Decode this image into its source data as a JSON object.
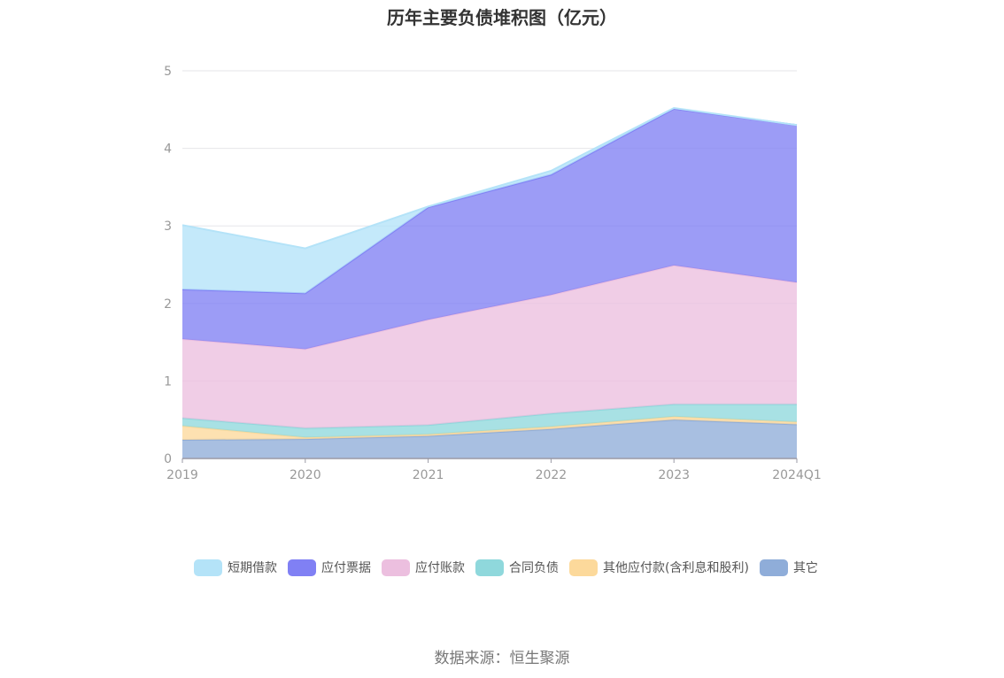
{
  "chart_data": {
    "type": "area",
    "stacked": true,
    "title": "历年主要负债堆积图（亿元）",
    "x": [
      "2019",
      "2020",
      "2021",
      "2022",
      "2023",
      "2024Q1"
    ],
    "ylim": [
      0,
      5
    ],
    "yticks": [
      "0",
      "1",
      "2",
      "3",
      "4",
      "5"
    ],
    "grid": true,
    "legend_position": "bottom",
    "series": [
      {
        "name": "其它",
        "color": "#8fadd9",
        "values": [
          0.24,
          0.25,
          0.29,
          0.38,
          0.5,
          0.44
        ]
      },
      {
        "name": "其他应付款(含利息和股利)",
        "color": "#fcd99b",
        "values": [
          0.18,
          0.02,
          0.02,
          0.03,
          0.04,
          0.03
        ]
      },
      {
        "name": "合同负债",
        "color": "#8fd8dc",
        "values": [
          0.1,
          0.12,
          0.12,
          0.17,
          0.16,
          0.23
        ]
      },
      {
        "name": "应付账款",
        "color": "#ecbfdf",
        "values": [
          1.02,
          1.02,
          1.36,
          1.53,
          1.79,
          1.57
        ]
      },
      {
        "name": "应付票据",
        "color": "#8080f4",
        "values": [
          0.64,
          0.72,
          1.45,
          1.55,
          2.02,
          2.03
        ]
      },
      {
        "name": "短期借款",
        "color": "#b4e3f8",
        "values": [
          0.83,
          0.58,
          0.01,
          0.05,
          0.01,
          0.0
        ]
      }
    ],
    "legend_order": [
      "短期借款",
      "应付票据",
      "应付账款",
      "合同负债",
      "其他应付款(含利息和股利)",
      "其它"
    ]
  },
  "source": "数据来源：恒生聚源"
}
